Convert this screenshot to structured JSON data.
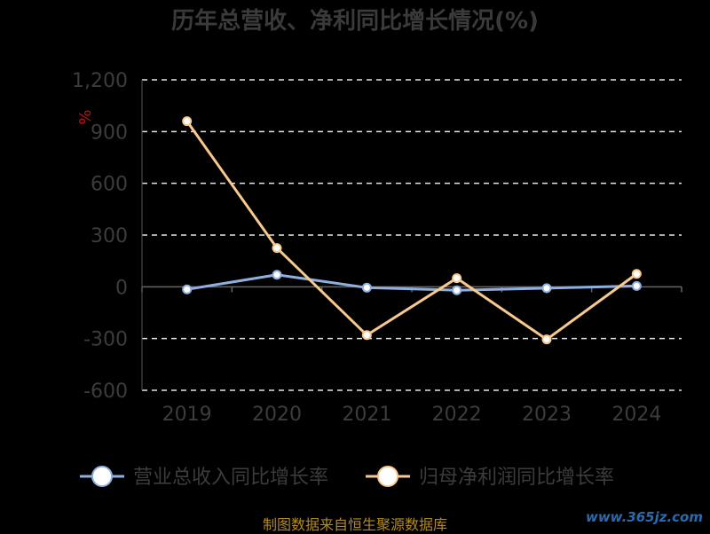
{
  "chart_data": {
    "type": "line",
    "title": "历年总营收、净利同比增长情况(%)",
    "ylabel": "%",
    "categories": [
      "2019",
      "2020",
      "2021",
      "2022",
      "2023",
      "2024"
    ],
    "ylim": [
      -600,
      1200
    ],
    "yticks": [
      "1,200",
      "900",
      "600",
      "300",
      "0",
      "-300",
      "-600"
    ],
    "ytick_values": [
      1200,
      900,
      600,
      300,
      0,
      -300,
      -600
    ],
    "grid": true,
    "legend_position": "bottom",
    "series": [
      {
        "name": "营业总收入同比增长率",
        "values": [
          -15,
          70,
          -5,
          -20,
          -8,
          5
        ],
        "color": "#8fb0de"
      },
      {
        "name": "归母净利润同比增长率",
        "values": [
          960,
          225,
          -280,
          50,
          -305,
          75
        ],
        "color": "#f7c98e"
      }
    ]
  },
  "footer": "制图数据来自恒生聚源数据库",
  "watermark": "www.365jz.com"
}
